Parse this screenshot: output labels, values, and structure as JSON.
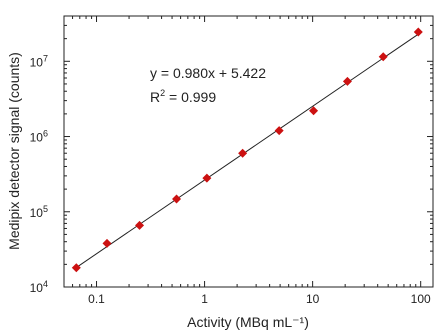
{
  "chart_data": {
    "type": "scatter",
    "xlabel": "Activity (MBq mL⁻¹)",
    "ylabel": "Medipix detector signal (counts)",
    "x_scale": "log",
    "y_scale": "log",
    "xlim": [
      0.05,
      130
    ],
    "ylim": [
      10000,
      40000000
    ],
    "x_ticks": [
      {
        "value": 0.1,
        "label": "0.1"
      },
      {
        "value": 1,
        "label": "1"
      },
      {
        "value": 10,
        "label": "10"
      },
      {
        "value": 100,
        "label": "100"
      }
    ],
    "y_ticks": [
      {
        "value": 10000,
        "base": "10",
        "exp": "4"
      },
      {
        "value": 100000,
        "base": "10",
        "exp": "5"
      },
      {
        "value": 1000000,
        "base": "10",
        "exp": "6"
      },
      {
        "value": 10000000,
        "base": "10",
        "exp": "7"
      }
    ],
    "series": [
      {
        "x": [
          0.065,
          0.125,
          0.25,
          0.55,
          1.05,
          2.25,
          4.9,
          10.2,
          21,
          45,
          95
        ],
        "y": [
          18000,
          38000,
          66000,
          148000,
          280000,
          600000,
          1200000,
          2200000,
          5400000,
          11500000,
          24500000
        ]
      }
    ],
    "fit": {
      "slope": 0.98,
      "intercept": 5.422,
      "equation": "y = 0.980x + 5.422",
      "r2_label": "R",
      "r2_exp": "2",
      "r2_value": " = 0.999"
    },
    "grid": false,
    "legend": "none",
    "colors": {
      "marker": "#cc1111",
      "line": "#222222",
      "axis": "#222222"
    }
  }
}
